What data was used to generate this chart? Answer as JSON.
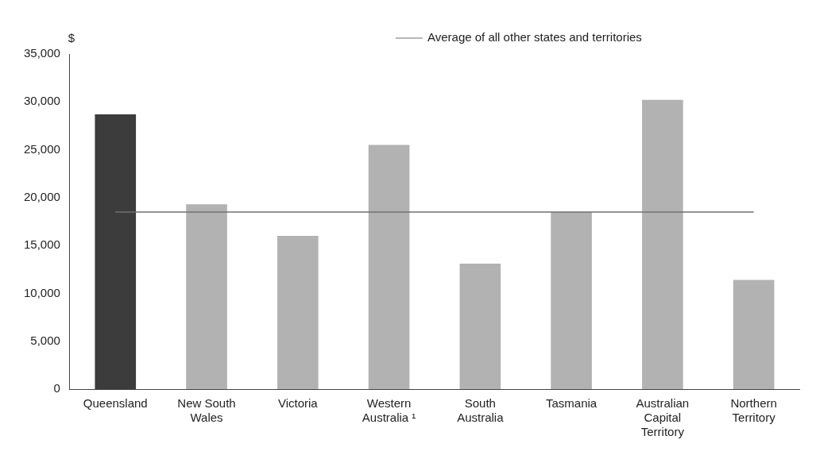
{
  "chart_data": {
    "type": "bar",
    "ylabel": "$",
    "categories": [
      "Queensland",
      "New South Wales",
      "Victoria",
      "Western Australia ¹",
      "South Australia",
      "Tasmania",
      "Australian Capital Territory",
      "Northern Territory"
    ],
    "values": [
      28700,
      19300,
      16000,
      25500,
      13100,
      18500,
      30200,
      11400
    ],
    "colors": [
      "#3c3c3c",
      "#b2b2b2",
      "#b2b2b2",
      "#b2b2b2",
      "#b2b2b2",
      "#b2b2b2",
      "#b2b2b2",
      "#b2b2b2"
    ],
    "ylim": [
      0,
      35000
    ],
    "yticks": [
      {
        "value": 0,
        "label": "0"
      },
      {
        "value": 5000,
        "label": "5,000"
      },
      {
        "value": 10000,
        "label": "10,000"
      },
      {
        "value": 15000,
        "label": "15,000"
      },
      {
        "value": 20000,
        "label": "20,000"
      },
      {
        "value": 25000,
        "label": "25,000"
      },
      {
        "value": 30000,
        "label": "30,000"
      },
      {
        "value": 35000,
        "label": "35,000"
      }
    ],
    "ref_lines": [
      {
        "axis": "y",
        "value": 18500,
        "label": "Average of all other states and territories",
        "color": "#707070"
      }
    ],
    "grid": false
  }
}
